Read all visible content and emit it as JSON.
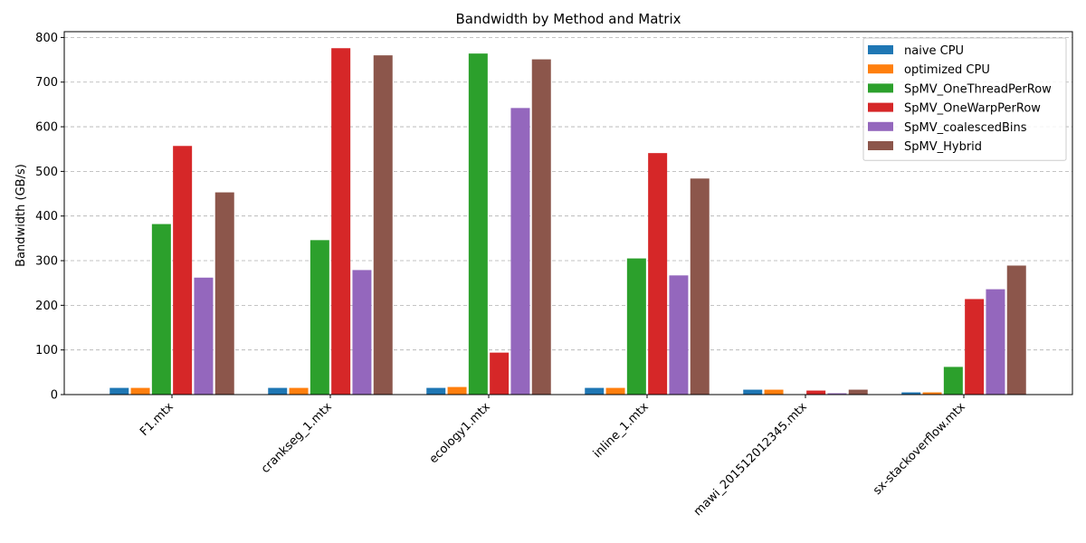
{
  "chart_data": {
    "type": "bar",
    "title": "Bandwidth by Method and Matrix",
    "xlabel": "",
    "ylabel": "Bandwidth (GB/s)",
    "ylim": [
      0,
      813
    ],
    "yticks": [
      0,
      100,
      200,
      300,
      400,
      500,
      600,
      700,
      800
    ],
    "grid": "y-dashed",
    "legend_position": "top-right",
    "categories": [
      "F1.mtx",
      "crankseg_1.mtx",
      "ecology1.mtx",
      "inline_1.mtx",
      "mawi_201512012345.mtx",
      "sx-stackoverflow.mtx"
    ],
    "series": [
      {
        "name": "naive CPU",
        "color": "#1f77b4",
        "values": [
          15,
          15,
          15,
          15,
          11,
          5
        ]
      },
      {
        "name": "optimized CPU",
        "color": "#ff7f0e",
        "values": [
          15,
          15,
          17,
          15,
          11,
          5
        ]
      },
      {
        "name": "SpMV_OneThreadPerRow",
        "color": "#2ca02c",
        "values": [
          382,
          346,
          764,
          305,
          1,
          62
        ]
      },
      {
        "name": "SpMV_OneWarpPerRow",
        "color": "#d62728",
        "values": [
          557,
          776,
          94,
          541,
          9,
          214
        ]
      },
      {
        "name": "SpMV_coalescedBins",
        "color": "#9467bd",
        "values": [
          262,
          279,
          642,
          267,
          3,
          236
        ]
      },
      {
        "name": "SpMV_Hybrid",
        "color": "#8c564b",
        "values": [
          453,
          760,
          751,
          484,
          11,
          289
        ]
      }
    ]
  }
}
